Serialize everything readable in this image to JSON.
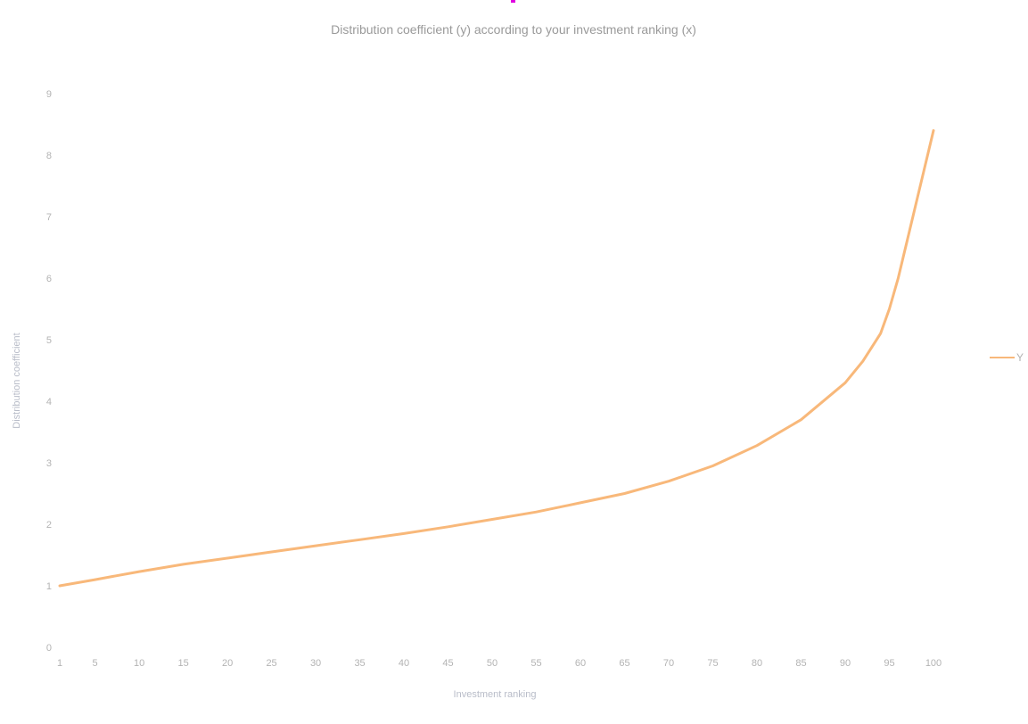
{
  "chart_data": {
    "type": "line",
    "title": "Distribution coefficient (y) according to your investment ranking (x)",
    "xlabel": "Investment ranking",
    "ylabel": "Distribution coefficient",
    "x_ticks": [
      1,
      5,
      10,
      15,
      20,
      25,
      30,
      35,
      40,
      45,
      50,
      55,
      60,
      65,
      70,
      75,
      80,
      85,
      90,
      95,
      100
    ],
    "y_ticks": [
      0,
      1,
      2,
      3,
      4,
      5,
      6,
      7,
      8,
      9
    ],
    "xlim": [
      1,
      100
    ],
    "ylim": [
      0,
      9
    ],
    "grid": false,
    "legend_position": "right",
    "series": [
      {
        "name": "Y",
        "color": "#f8b87a",
        "x": [
          1,
          5,
          10,
          15,
          20,
          25,
          30,
          35,
          40,
          45,
          50,
          55,
          60,
          65,
          70,
          75,
          80,
          85,
          90,
          92,
          94,
          95,
          96,
          97,
          98,
          99,
          100
        ],
        "y": [
          1.0,
          1.1,
          1.23,
          1.35,
          1.45,
          1.55,
          1.65,
          1.75,
          1.85,
          1.96,
          2.08,
          2.2,
          2.35,
          2.5,
          2.7,
          2.95,
          3.28,
          3.7,
          4.3,
          4.65,
          5.1,
          5.5,
          6.0,
          6.6,
          7.2,
          7.8,
          8.4
        ]
      }
    ]
  }
}
